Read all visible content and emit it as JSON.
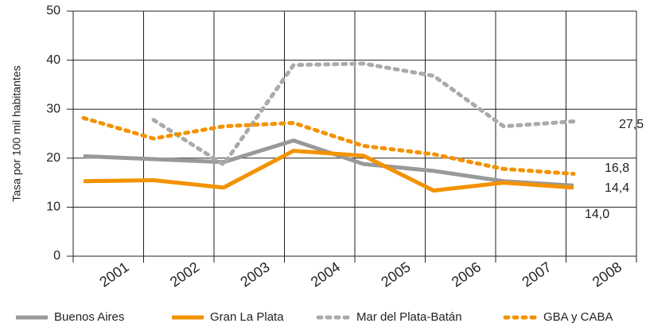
{
  "chart_data": {
    "type": "line",
    "ylabel": "Tasa por 100 mil habitantes",
    "categories": [
      "2001",
      "2002",
      "2003",
      "2004",
      "2005",
      "2006",
      "2007",
      "2008"
    ],
    "ylim": [
      0,
      50
    ],
    "yticks": [
      0,
      10,
      20,
      30,
      40,
      50
    ],
    "grid": true,
    "legend": "bottom",
    "series": [
      {
        "name": "Buenos Aires",
        "color": "#999999",
        "style": "solid",
        "values": [
          20.4,
          19.8,
          19.2,
          23.6,
          18.8,
          17.4,
          15.3,
          14.4
        ],
        "value_labels": [
          null,
          null,
          null,
          null,
          null,
          null,
          null,
          "14,4"
        ]
      },
      {
        "name": "Gran La Plata",
        "color": "#f39200",
        "style": "solid",
        "values": [
          15.3,
          15.5,
          14.0,
          21.5,
          20.5,
          13.4,
          15.0,
          14.0
        ],
        "value_labels": [
          null,
          null,
          null,
          null,
          null,
          null,
          null,
          "14,0"
        ]
      },
      {
        "name": "Mar del Plata-Batán",
        "color": "#aaaaaa",
        "style": "dotted",
        "values": [
          null,
          27.8,
          18.7,
          39.0,
          39.3,
          36.8,
          26.5,
          27.5
        ],
        "value_labels": [
          null,
          null,
          null,
          null,
          null,
          null,
          null,
          "27,5"
        ]
      },
      {
        "name": "GBA y CABA",
        "color": "#f39200",
        "style": "dotted",
        "values": [
          28.2,
          24.0,
          26.5,
          27.2,
          22.5,
          20.8,
          17.8,
          16.8
        ],
        "value_labels": [
          null,
          null,
          null,
          null,
          null,
          null,
          null,
          "16,8"
        ]
      }
    ]
  }
}
